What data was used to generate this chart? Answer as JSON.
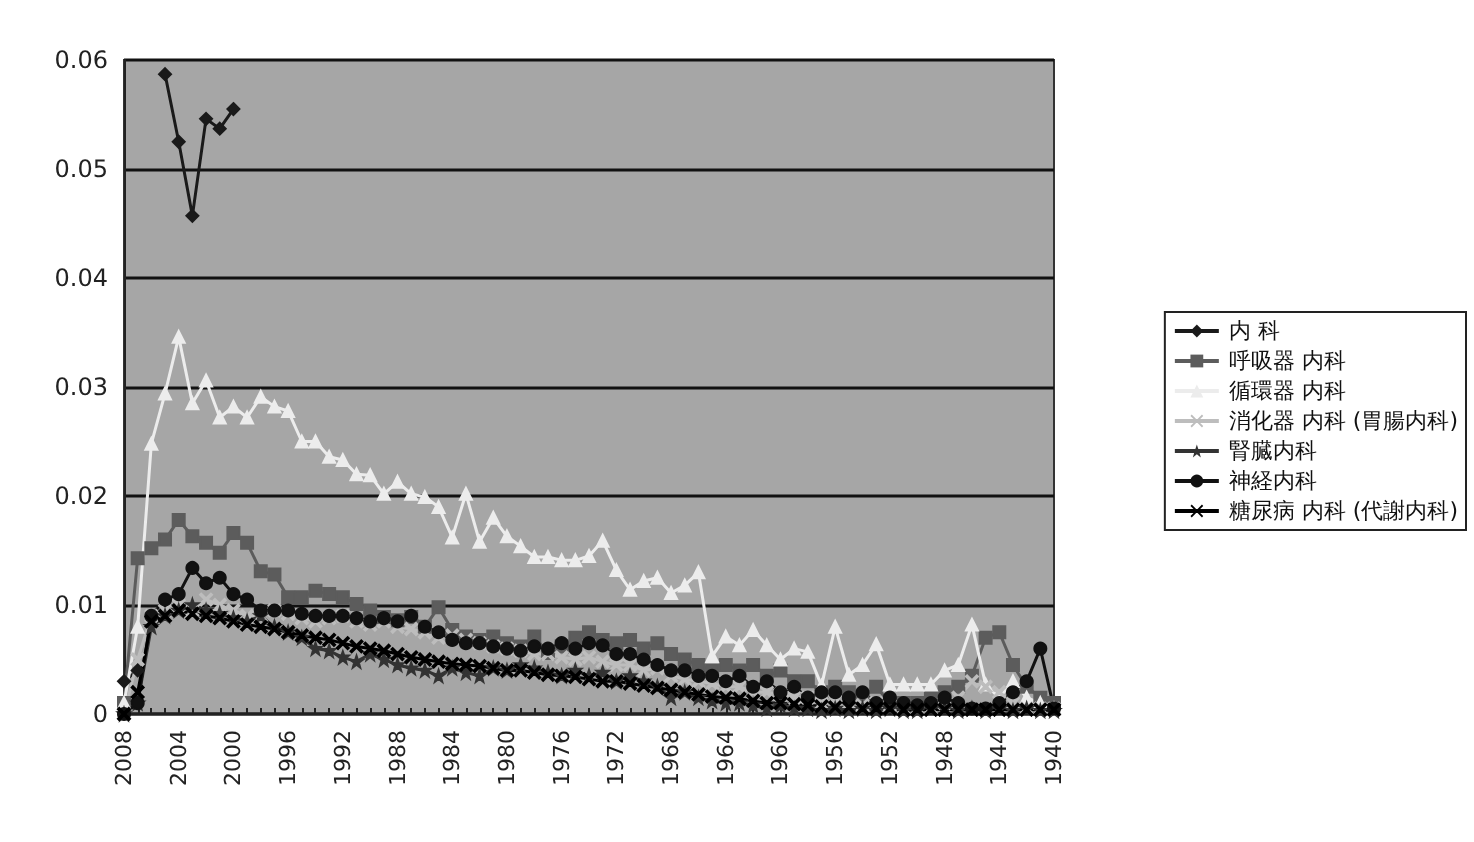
{
  "chart_data": {
    "type": "line",
    "categories": [
      "2008",
      null,
      null,
      null,
      "2004",
      null,
      null,
      null,
      "2000",
      null,
      null,
      null,
      "1996",
      null,
      null,
      null,
      "1992",
      null,
      null,
      null,
      "1988",
      null,
      null,
      null,
      "1984",
      null,
      null,
      null,
      "1980",
      null,
      null,
      null,
      "1976",
      null,
      null,
      null,
      "1972",
      null,
      null,
      null,
      "1968",
      null,
      null,
      null,
      "1964",
      null,
      null,
      null,
      "1960",
      null,
      null,
      null,
      "1956",
      null,
      null,
      null,
      "1952",
      null,
      null,
      null,
      "1948",
      null,
      null,
      null,
      "1944",
      null,
      null,
      null,
      "1940"
    ],
    "series": [
      {
        "name": "内 科",
        "color": "#1a1a1a",
        "marker": "diamond",
        "values": [
          0.003,
          0.004,
          null,
          0.0587,
          0.0525,
          0.0457,
          0.0546,
          0.0537,
          0.0555,
          null,
          null,
          null,
          null,
          null,
          null,
          null,
          null,
          null,
          null,
          null,
          null,
          null,
          null,
          null,
          null,
          null,
          null,
          null,
          null,
          null,
          null,
          null,
          null,
          null,
          null,
          null,
          null,
          null,
          null,
          null,
          null,
          null,
          null,
          null,
          null,
          null,
          null,
          null,
          null,
          null,
          null,
          null,
          null,
          null,
          null,
          null,
          null,
          null,
          null,
          null,
          null,
          null,
          null,
          null,
          null,
          null,
          null,
          null,
          null
        ]
      },
      {
        "name": "呼吸器 内科",
        "color": "#5c5c5c",
        "marker": "square",
        "values": [
          0.001,
          0.0143,
          0.0152,
          0.016,
          0.0178,
          0.0163,
          0.0157,
          0.0148,
          0.0166,
          0.0157,
          0.0131,
          0.0128,
          0.0107,
          0.0107,
          0.0113,
          0.011,
          0.0107,
          0.0101,
          0.0095,
          0.0089,
          0.0086,
          0.0089,
          0.008,
          0.0098,
          0.0077,
          0.0071,
          0.0068,
          0.0071,
          0.0065,
          0.0062,
          0.0071,
          0.0056,
          0.0062,
          0.007,
          0.0075,
          0.0068,
          0.0065,
          0.0068,
          0.006,
          0.0065,
          0.0055,
          0.005,
          0.0045,
          0.004,
          0.0045,
          0.004,
          0.0045,
          0.0035,
          0.004,
          0.003,
          0.003,
          0.002,
          0.0025,
          0.002,
          0.0015,
          0.0025,
          0.001,
          0.001,
          0.001,
          0.0015,
          0.002,
          0.0025,
          0.0035,
          0.007,
          0.0075,
          0.0045,
          0.0025,
          0.0015,
          0.001
        ]
      },
      {
        "name": "循環器 内科",
        "color": "#ececec",
        "marker": "triangle",
        "values": [
          0.001,
          0.008,
          0.0248,
          0.0294,
          0.0346,
          0.0285,
          0.0306,
          0.0272,
          0.0282,
          0.0272,
          0.0291,
          0.0282,
          0.0278,
          0.025,
          0.025,
          0.0236,
          0.0233,
          0.022,
          0.0219,
          0.0202,
          0.0213,
          0.0202,
          0.0199,
          0.019,
          0.0162,
          0.0202,
          0.0158,
          0.018,
          0.0163,
          0.0154,
          0.0144,
          0.0144,
          0.0141,
          0.0141,
          0.0145,
          0.0159,
          0.0132,
          0.0114,
          0.0122,
          0.0125,
          0.0111,
          0.0118,
          0.013,
          0.0053,
          0.0071,
          0.0063,
          0.0077,
          0.0063,
          0.005,
          0.006,
          0.0057,
          0.0026,
          0.008,
          0.0036,
          0.0045,
          0.0064,
          0.0027,
          0.0027,
          0.0027,
          0.0027,
          0.004,
          0.0045,
          0.0082,
          0.0027,
          0.0015,
          0.003,
          0.0015,
          0.001,
          0.0005
        ]
      },
      {
        "name": "消化器 内科 (胃腸内科)",
        "color": "#bdbdbd",
        "marker": "cross",
        "values": [
          0,
          0.005,
          0.009,
          0.0095,
          0.01,
          0.0095,
          0.0105,
          0.01,
          0.0095,
          0.009,
          0.009,
          0.0095,
          0.0092,
          0.0088,
          0.0085,
          0.0088,
          0.009,
          0.0085,
          0.0082,
          0.0085,
          0.008,
          0.0078,
          0.0075,
          0.007,
          0.0072,
          0.0068,
          0.0065,
          0.0062,
          0.006,
          0.0058,
          0.0055,
          0.0055,
          0.0052,
          0.005,
          0.0052,
          0.0048,
          0.0045,
          0.0045,
          0.004,
          0.0042,
          0.0035,
          0.0032,
          0.003,
          0.0028,
          0.0025,
          0.0025,
          0.002,
          0.002,
          0.0018,
          0.0015,
          0.0015,
          0.001,
          0.0012,
          0.001,
          0.0008,
          0.001,
          0.0008,
          0.0005,
          0.0005,
          0.0005,
          0.001,
          0.0015,
          0.003,
          0.0025,
          0.002,
          0.001,
          0.0005,
          0.0005,
          0.0005
        ]
      },
      {
        "name": "腎臓内科",
        "color": "#333333",
        "marker": "star",
        "values": [
          0,
          0.001,
          0.008,
          0.009,
          0.0095,
          0.01,
          0.0095,
          0.0092,
          0.0088,
          0.0085,
          0.009,
          0.008,
          0.0075,
          0.007,
          0.006,
          0.0058,
          0.0052,
          0.0048,
          0.0055,
          0.005,
          0.0045,
          0.0042,
          0.004,
          0.0035,
          0.0042,
          0.0038,
          0.0035,
          0.0042,
          0.004,
          0.0045,
          0.0042,
          0.0038,
          0.0035,
          0.004,
          0.0035,
          0.0038,
          0.003,
          0.0035,
          0.003,
          0.0025,
          0.0015,
          0.002,
          0.0015,
          0.0012,
          0.001,
          0.001,
          0.0008,
          0.0005,
          0.0008,
          0.0005,
          0.0005,
          0.0003,
          0.0005,
          0.0003,
          0.0005,
          0.0003,
          0.0005,
          0.0003,
          0.0003,
          0.0005,
          0.0005,
          0.0003,
          0.0005,
          0.0003,
          0.0005,
          0.0003,
          0.0005,
          0.0003,
          0.0003
        ]
      },
      {
        "name": "神経内科",
        "color": "#111111",
        "marker": "circle",
        "values": [
          0,
          0.001,
          0.009,
          0.0105,
          0.011,
          0.0134,
          0.012,
          0.0125,
          0.011,
          0.0105,
          0.0095,
          0.0095,
          0.0095,
          0.0092,
          0.009,
          0.009,
          0.009,
          0.0088,
          0.0085,
          0.0088,
          0.0085,
          0.009,
          0.008,
          0.0075,
          0.0068,
          0.0065,
          0.0065,
          0.0062,
          0.006,
          0.0058,
          0.0062,
          0.006,
          0.0065,
          0.006,
          0.0065,
          0.0063,
          0.0055,
          0.0055,
          0.005,
          0.0045,
          0.004,
          0.004,
          0.0035,
          0.0035,
          0.003,
          0.0035,
          0.0025,
          0.003,
          0.002,
          0.0025,
          0.0015,
          0.002,
          0.002,
          0.0015,
          0.002,
          0.001,
          0.0015,
          0.001,
          0.0008,
          0.001,
          0.0015,
          0.001,
          0.0005,
          0.0005,
          0.001,
          0.002,
          0.003,
          0.006,
          0.0005
        ]
      },
      {
        "name": "糖尿病 内科 (代謝内科)",
        "color": "#000000",
        "marker": "cross",
        "values": [
          0,
          0.002,
          0.0085,
          0.009,
          0.0095,
          0.0092,
          0.009,
          0.0088,
          0.0085,
          0.0082,
          0.008,
          0.0078,
          0.0075,
          0.0072,
          0.007,
          0.0068,
          0.0065,
          0.0062,
          0.006,
          0.0058,
          0.0055,
          0.0052,
          0.005,
          0.0048,
          0.0046,
          0.0045,
          0.0044,
          0.0042,
          0.004,
          0.004,
          0.0038,
          0.0036,
          0.0035,
          0.0034,
          0.0032,
          0.003,
          0.003,
          0.0028,
          0.0026,
          0.0024,
          0.0022,
          0.002,
          0.0018,
          0.0016,
          0.0015,
          0.0014,
          0.0012,
          0.001,
          0.001,
          0.0009,
          0.0008,
          0.0007,
          0.0006,
          0.0006,
          0.0005,
          0.0005,
          0.0005,
          0.0004,
          0.0004,
          0.0004,
          0.0004,
          0.0004,
          0.0004,
          0.0004,
          0.0004,
          0.0004,
          0.0004,
          0.0004,
          0.0004
        ]
      }
    ],
    "ylim": [
      0,
      0.06
    ],
    "yticks": [
      0,
      0.01,
      0.02,
      0.03,
      0.04,
      0.05,
      0.06
    ],
    "grid": "y",
    "legend": "right"
  }
}
